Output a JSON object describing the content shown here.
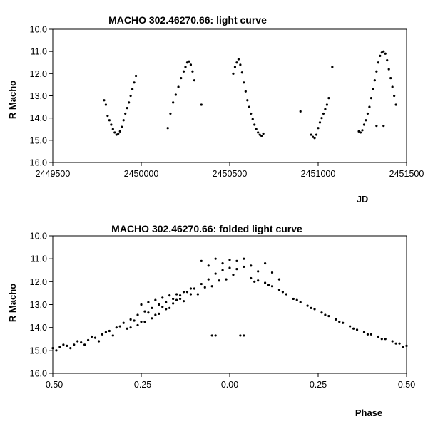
{
  "chart_data": [
    {
      "type": "scatter",
      "title": "MACHO 302.46270.66: light curve",
      "xlabel": "JD",
      "ylabel": "R Macho",
      "xlim": [
        2449500,
        2451500
      ],
      "ylim": [
        10.0,
        16.0
      ],
      "y_inverted": true,
      "xticks": [
        2449500,
        2450000,
        2450500,
        2451000,
        2451500
      ],
      "xtick_labels": [
        "2449500",
        "2450000",
        "2450500",
        "2451000",
        "2451500"
      ],
      "yticks": [
        10,
        11,
        12,
        13,
        14,
        15,
        16
      ],
      "ytick_labels": [
        "10.0",
        "11.0",
        "12.0",
        "13.0",
        "14.0",
        "15.0",
        "16.0"
      ],
      "grid": false,
      "marker_color": "#000000",
      "points": [
        [
          2449790,
          13.2
        ],
        [
          2449800,
          13.4
        ],
        [
          2449810,
          13.9
        ],
        [
          2449820,
          14.1
        ],
        [
          2449830,
          14.3
        ],
        [
          2449840,
          14.5
        ],
        [
          2449850,
          14.65
        ],
        [
          2449860,
          14.75
        ],
        [
          2449870,
          14.7
        ],
        [
          2449880,
          14.6
        ],
        [
          2449890,
          14.4
        ],
        [
          2449900,
          14.1
        ],
        [
          2449910,
          13.8
        ],
        [
          2449920,
          13.55
        ],
        [
          2449930,
          13.3
        ],
        [
          2449940,
          13.0
        ],
        [
          2449950,
          12.7
        ],
        [
          2449960,
          12.4
        ],
        [
          2449970,
          12.1
        ],
        [
          2450150,
          14.45
        ],
        [
          2450165,
          13.8
        ],
        [
          2450180,
          13.3
        ],
        [
          2450195,
          12.95
        ],
        [
          2450210,
          12.6
        ],
        [
          2450225,
          12.2
        ],
        [
          2450240,
          11.9
        ],
        [
          2450250,
          11.7
        ],
        [
          2450260,
          11.5
        ],
        [
          2450270,
          11.45
        ],
        [
          2450280,
          11.6
        ],
        [
          2450290,
          11.9
        ],
        [
          2450300,
          12.3
        ],
        [
          2450340,
          13.4
        ],
        [
          2450520,
          12.0
        ],
        [
          2450530,
          11.7
        ],
        [
          2450540,
          11.5
        ],
        [
          2450550,
          11.35
        ],
        [
          2450560,
          11.6
        ],
        [
          2450570,
          11.95
        ],
        [
          2450580,
          12.4
        ],
        [
          2450590,
          12.8
        ],
        [
          2450600,
          13.2
        ],
        [
          2450610,
          13.5
        ],
        [
          2450620,
          13.8
        ],
        [
          2450630,
          14.05
        ],
        [
          2450640,
          14.3
        ],
        [
          2450650,
          14.5
        ],
        [
          2450660,
          14.65
        ],
        [
          2450670,
          14.75
        ],
        [
          2450680,
          14.8
        ],
        [
          2450690,
          14.7
        ],
        [
          2450900,
          13.7
        ],
        [
          2450960,
          14.75
        ],
        [
          2450970,
          14.85
        ],
        [
          2450980,
          14.9
        ],
        [
          2450990,
          14.75
        ],
        [
          2451000,
          14.45
        ],
        [
          2451010,
          14.2
        ],
        [
          2451020,
          14.0
        ],
        [
          2451030,
          13.8
        ],
        [
          2451040,
          13.6
        ],
        [
          2451050,
          13.4
        ],
        [
          2451060,
          13.1
        ],
        [
          2451080,
          11.7
        ],
        [
          2451230,
          14.6
        ],
        [
          2451240,
          14.65
        ],
        [
          2451250,
          14.55
        ],
        [
          2451260,
          14.3
        ],
        [
          2451270,
          14.1
        ],
        [
          2451280,
          13.8
        ],
        [
          2451290,
          13.5
        ],
        [
          2451300,
          13.1
        ],
        [
          2451310,
          12.7
        ],
        [
          2451320,
          12.3
        ],
        [
          2451330,
          11.9
        ],
        [
          2451340,
          11.5
        ],
        [
          2451350,
          11.2
        ],
        [
          2451360,
          11.05
        ],
        [
          2451370,
          11.0
        ],
        [
          2451380,
          11.1
        ],
        [
          2451390,
          11.4
        ],
        [
          2451400,
          11.8
        ],
        [
          2451410,
          12.2
        ],
        [
          2451420,
          12.6
        ],
        [
          2451430,
          13.0
        ],
        [
          2451440,
          13.4
        ],
        [
          2451330,
          14.35
        ],
        [
          2451370,
          14.35
        ]
      ]
    },
    {
      "type": "scatter",
      "title": "MACHO 302.46270.66: folded light curve",
      "xlabel": "Phase",
      "ylabel": "R Macho",
      "xlim": [
        -0.5,
        0.5
      ],
      "ylim": [
        10.0,
        16.0
      ],
      "y_inverted": true,
      "xticks": [
        -0.5,
        -0.25,
        0.0,
        0.25,
        0.5
      ],
      "xtick_labels": [
        "-0.50",
        "-0.25",
        "0.00",
        "0.25",
        "0.50"
      ],
      "yticks": [
        10,
        11,
        12,
        13,
        14,
        15,
        16
      ],
      "ytick_labels": [
        "10.0",
        "11.0",
        "12.0",
        "13.0",
        "14.0",
        "15.0",
        "16.0"
      ],
      "grid": false,
      "marker_color": "#000000",
      "points": [
        [
          -0.5,
          14.9
        ],
        [
          -0.48,
          14.85
        ],
        [
          -0.46,
          14.8
        ],
        [
          -0.44,
          14.75
        ],
        [
          -0.42,
          14.65
        ],
        [
          -0.4,
          14.55
        ],
        [
          -0.38,
          14.45
        ],
        [
          -0.36,
          14.3
        ],
        [
          -0.34,
          14.15
        ],
        [
          -0.32,
          14.0
        ],
        [
          -0.3,
          13.8
        ],
        [
          -0.28,
          13.65
        ],
        [
          -0.26,
          13.45
        ],
        [
          -0.24,
          13.3
        ],
        [
          -0.22,
          13.15
        ],
        [
          -0.2,
          13.0
        ],
        [
          -0.18,
          12.9
        ],
        [
          -0.16,
          12.75
        ],
        [
          -0.14,
          12.6
        ],
        [
          -0.12,
          12.45
        ],
        [
          -0.1,
          12.3
        ],
        [
          -0.08,
          12.1
        ],
        [
          -0.06,
          11.9
        ],
        [
          -0.04,
          11.65
        ],
        [
          -0.02,
          11.5
        ],
        [
          0.0,
          11.4
        ],
        [
          0.02,
          11.45
        ],
        [
          0.04,
          11.35
        ],
        [
          -0.49,
          15.0
        ],
        [
          -0.45,
          14.9
        ],
        [
          -0.41,
          14.75
        ],
        [
          -0.37,
          14.6
        ],
        [
          -0.33,
          14.35
        ],
        [
          -0.29,
          14.05
        ],
        [
          -0.25,
          13.75
        ],
        [
          -0.21,
          13.45
        ],
        [
          -0.17,
          13.15
        ],
        [
          -0.13,
          12.85
        ],
        [
          -0.09,
          12.55
        ],
        [
          -0.05,
          12.2
        ],
        [
          -0.01,
          11.9
        ],
        [
          -0.47,
          14.75
        ],
        [
          -0.43,
          14.6
        ],
        [
          -0.39,
          14.4
        ],
        [
          -0.35,
          14.2
        ],
        [
          -0.31,
          13.95
        ],
        [
          -0.27,
          13.7
        ],
        [
          -0.23,
          13.35
        ],
        [
          -0.19,
          13.1
        ],
        [
          -0.15,
          12.8
        ],
        [
          -0.11,
          12.55
        ],
        [
          -0.07,
          12.25
        ],
        [
          -0.03,
          11.95
        ],
        [
          0.01,
          11.7
        ],
        [
          -0.28,
          14.0
        ],
        [
          -0.26,
          13.9
        ],
        [
          -0.24,
          13.75
        ],
        [
          -0.22,
          13.6
        ],
        [
          -0.2,
          13.4
        ],
        [
          -0.18,
          13.2
        ],
        [
          -0.16,
          12.95
        ],
        [
          -0.14,
          12.75
        ],
        [
          -0.25,
          13.0
        ],
        [
          -0.23,
          12.9
        ],
        [
          -0.21,
          12.8
        ],
        [
          -0.19,
          12.7
        ],
        [
          -0.17,
          12.6
        ],
        [
          -0.15,
          12.55
        ],
        [
          -0.13,
          12.45
        ],
        [
          -0.11,
          12.3
        ],
        [
          -0.08,
          11.1
        ],
        [
          -0.06,
          11.3
        ],
        [
          -0.04,
          11.0
        ],
        [
          -0.02,
          11.2
        ],
        [
          0.0,
          11.05
        ],
        [
          0.02,
          11.1
        ],
        [
          0.04,
          11.0
        ],
        [
          0.06,
          11.3
        ],
        [
          0.08,
          11.55
        ],
        [
          0.06,
          11.85
        ],
        [
          0.08,
          11.95
        ],
        [
          0.1,
          12.05
        ],
        [
          0.12,
          12.2
        ],
        [
          0.14,
          12.35
        ],
        [
          0.16,
          12.55
        ],
        [
          0.18,
          12.75
        ],
        [
          0.2,
          12.9
        ],
        [
          0.22,
          13.05
        ],
        [
          0.24,
          13.2
        ],
        [
          0.26,
          13.35
        ],
        [
          0.28,
          13.5
        ],
        [
          0.3,
          13.65
        ],
        [
          0.32,
          13.8
        ],
        [
          0.34,
          13.95
        ],
        [
          0.36,
          14.1
        ],
        [
          0.38,
          14.2
        ],
        [
          0.4,
          14.3
        ],
        [
          0.42,
          14.4
        ],
        [
          0.44,
          14.5
        ],
        [
          0.46,
          14.6
        ],
        [
          0.48,
          14.7
        ],
        [
          0.5,
          14.8
        ],
        [
          0.07,
          12.0
        ],
        [
          0.11,
          12.15
        ],
        [
          0.15,
          12.45
        ],
        [
          0.19,
          12.8
        ],
        [
          0.23,
          13.15
        ],
        [
          0.27,
          13.45
        ],
        [
          0.31,
          13.75
        ],
        [
          0.35,
          14.05
        ],
        [
          0.39,
          14.3
        ],
        [
          0.43,
          14.5
        ],
        [
          0.47,
          14.7
        ],
        [
          0.49,
          14.85
        ],
        [
          0.1,
          11.2
        ],
        [
          0.12,
          11.6
        ],
        [
          0.14,
          11.9
        ],
        [
          -0.05,
          14.35
        ],
        [
          -0.04,
          14.35
        ],
        [
          0.03,
          14.35
        ],
        [
          0.04,
          14.35
        ]
      ]
    }
  ]
}
